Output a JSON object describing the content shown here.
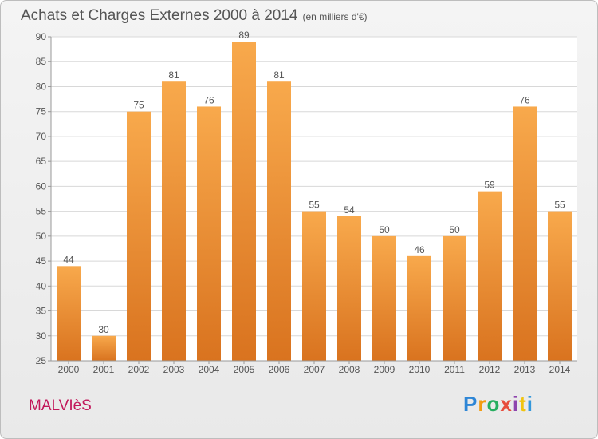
{
  "title": "Achats et Charges Externes 2000 à 2014",
  "unit": "(en milliers d'€)",
  "commune": "MALVIèS",
  "brand": {
    "letters": [
      "P",
      "r",
      "o",
      "x",
      "i",
      "t",
      "i"
    ],
    "colors": [
      "#2e86d6",
      "#f39c12",
      "#27ae60",
      "#e74c3c",
      "#8e44ad",
      "#f1c40f",
      "#3498db"
    ]
  },
  "colors": {
    "bar_light": "#f8a94c",
    "bar_dark": "#d9731f",
    "grid": "#d8d8d8",
    "axis_text": "#555555",
    "commune": "#c2185b"
  },
  "chart_data": {
    "type": "bar",
    "categories": [
      "2000",
      "2001",
      "2002",
      "2003",
      "2004",
      "2005",
      "2006",
      "2007",
      "2008",
      "2009",
      "2010",
      "2011",
      "2012",
      "2013",
      "2014"
    ],
    "values": [
      44,
      30,
      75,
      81,
      76,
      89,
      81,
      55,
      54,
      50,
      46,
      50,
      59,
      76,
      55
    ],
    "yticks": [
      25,
      30,
      35,
      40,
      45,
      50,
      55,
      60,
      65,
      70,
      75,
      80,
      85,
      90
    ],
    "ylim": [
      25,
      90
    ],
    "grid": true,
    "title": "Achats et Charges Externes 2000 à 2014",
    "xlabel": "",
    "ylabel": ""
  }
}
